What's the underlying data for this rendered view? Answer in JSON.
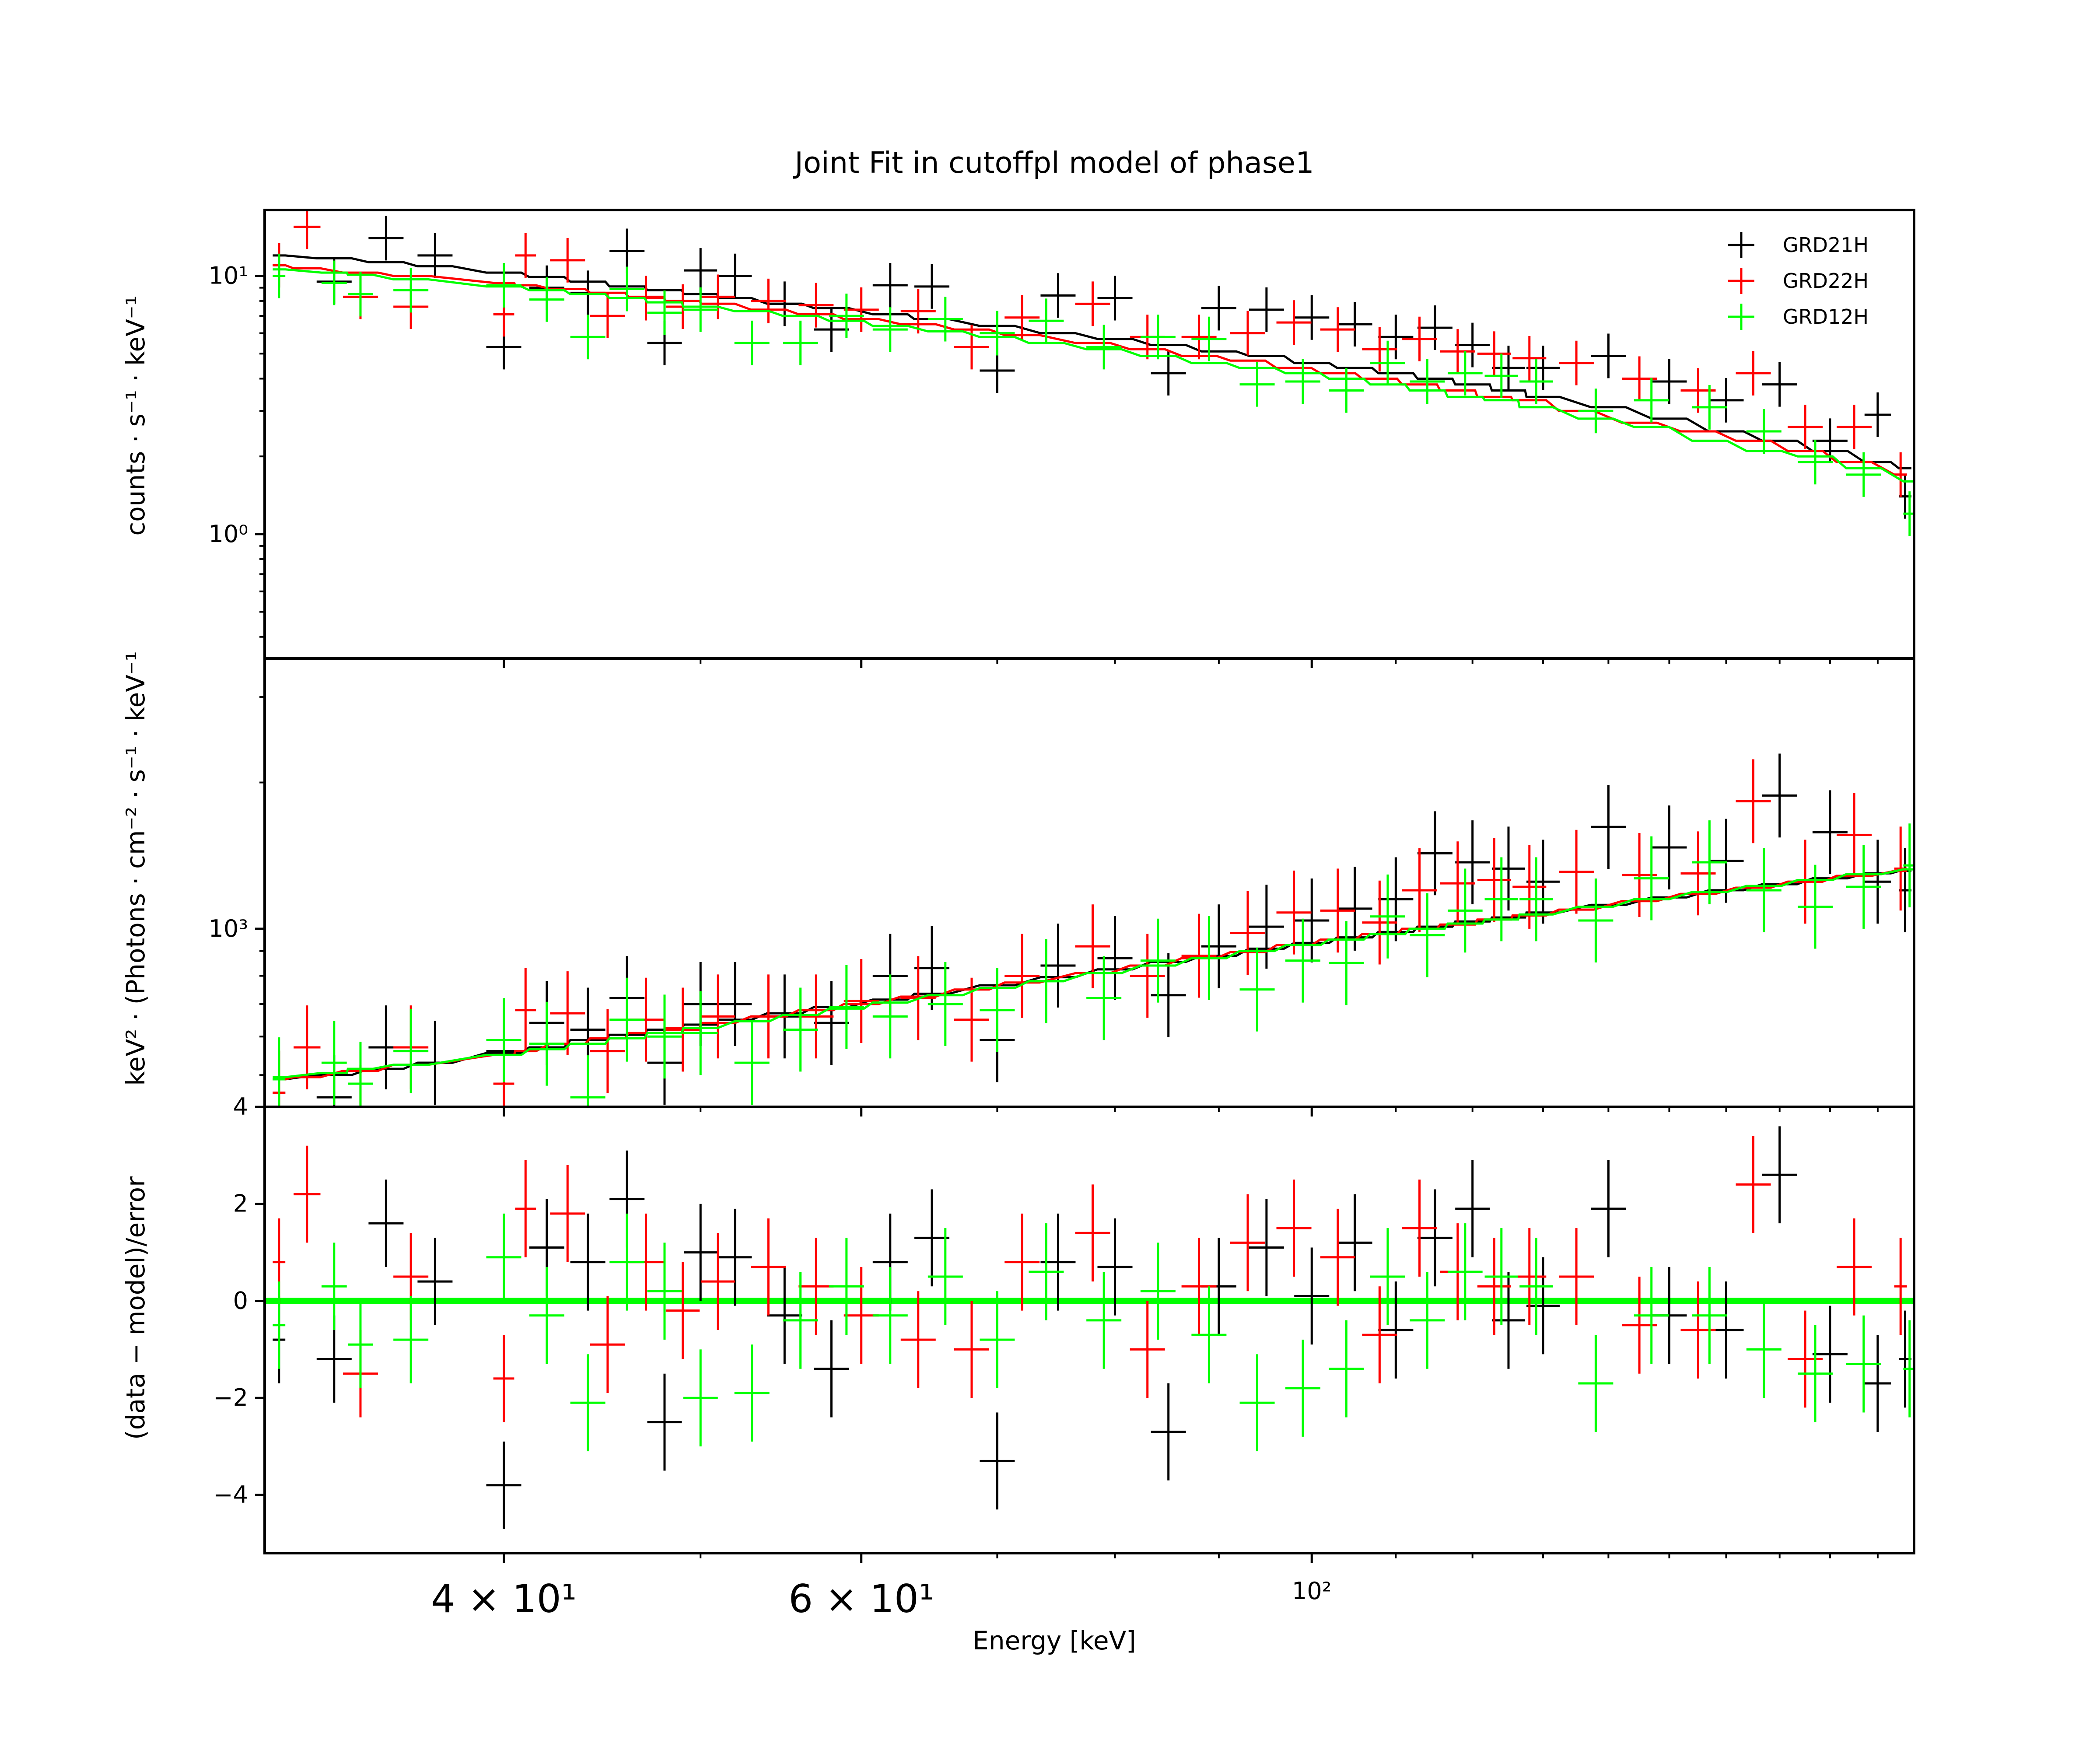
{
  "colors": {
    "GRD21H": "#000000",
    "GRD22H": "#ff0000",
    "GRD12H": "#00ff00"
  },
  "chart_data": [
    {
      "panel": "counts",
      "type": "scatter",
      "title": "Joint Fit  in cutoffpl model of phase1",
      "ylabel": "counts · s⁻¹ · keV⁻¹",
      "xlabel": "",
      "xscale": "log",
      "yscale": "log",
      "xlim": [
        30.5,
        198
      ],
      "ylim": [
        0.33,
        18
      ],
      "yticks": [
        {
          "value": 1,
          "label": "10⁰"
        },
        {
          "value": 10,
          "label": "10¹"
        }
      ],
      "legend": {
        "placement": "top-right",
        "entries": [
          "GRD21H",
          "GRD22H",
          "GRD12H"
        ]
      },
      "grid": false,
      "series": [
        {
          "name": "GRD21H",
          "color": "#000000",
          "x": [
            31,
            33,
            35,
            37,
            40,
            42,
            44,
            46,
            48,
            50,
            52,
            55,
            58,
            62,
            65,
            70,
            75,
            80,
            85,
            90,
            95,
            100,
            105,
            110,
            115,
            120,
            125,
            130,
            140,
            150,
            160,
            170,
            180,
            190,
            196
          ],
          "y": [
            11.0,
            9.5,
            14.0,
            12.0,
            5.3,
            9.0,
            8.6,
            12.5,
            5.5,
            10.5,
            10.0,
            7.8,
            6.2,
            9.2,
            9.1,
            4.3,
            8.4,
            8.2,
            4.2,
            7.5,
            7.4,
            6.9,
            6.5,
            5.8,
            6.3,
            5.4,
            4.4,
            4.4,
            4.9,
            3.9,
            3.3,
            3.8,
            2.3,
            2.9,
            1.4
          ],
          "model": [
            12.0,
            11.7,
            11.3,
            10.9,
            10.3,
            9.9,
            9.5,
            9.1,
            8.8,
            8.5,
            8.2,
            7.8,
            7.5,
            7.1,
            6.8,
            6.4,
            6.0,
            5.7,
            5.4,
            5.1,
            4.9,
            4.6,
            4.4,
            4.2,
            4.0,
            3.8,
            3.6,
            3.4,
            3.1,
            2.8,
            2.5,
            2.3,
            2.1,
            1.9,
            1.8
          ]
        },
        {
          "name": "GRD22H",
          "color": "#ff0000",
          "x": [
            31,
            32,
            34,
            36,
            40,
            41,
            43,
            45,
            47,
            49,
            51,
            54,
            57,
            60,
            64,
            68,
            72,
            78,
            83,
            88,
            93,
            98,
            103,
            108,
            113,
            118,
            123,
            128,
            135,
            145,
            155,
            165,
            175,
            185,
            195
          ],
          "y": [
            11.0,
            15.5,
            8.3,
            7.6,
            7.1,
            12.0,
            11.5,
            7.0,
            8.2,
            7.6,
            8.3,
            8.0,
            7.7,
            7.4,
            7.3,
            5.3,
            6.9,
            7.8,
            5.8,
            5.8,
            6.0,
            6.6,
            6.2,
            5.2,
            5.7,
            5.1,
            5.0,
            4.8,
            4.6,
            4.0,
            3.6,
            4.2,
            2.6,
            2.6,
            1.7
          ],
          "model": [
            11.0,
            10.7,
            10.3,
            10.0,
            9.4,
            9.2,
            8.9,
            8.6,
            8.3,
            8.0,
            7.8,
            7.4,
            7.1,
            6.8,
            6.5,
            6.2,
            5.9,
            5.5,
            5.2,
            4.9,
            4.7,
            4.4,
            4.2,
            4.0,
            3.8,
            3.6,
            3.4,
            3.3,
            3.0,
            2.7,
            2.5,
            2.3,
            2.1,
            1.9,
            1.7
          ]
        },
        {
          "name": "GRD12H",
          "color": "#00ff00",
          "x": [
            31,
            33,
            34,
            36,
            40,
            42,
            44,
            46,
            48,
            50,
            53,
            56,
            59,
            62,
            66,
            70,
            74,
            79,
            84,
            89,
            94,
            99,
            104,
            109,
            114,
            119,
            124,
            129,
            138,
            147,
            157,
            167,
            177,
            187,
            197
          ],
          "y": [
            10.0,
            9.4,
            8.5,
            8.8,
            9.2,
            8.1,
            5.8,
            8.9,
            7.2,
            7.4,
            5.5,
            5.5,
            7.0,
            6.2,
            6.8,
            6.0,
            6.7,
            5.3,
            5.8,
            5.7,
            3.8,
            3.9,
            3.6,
            4.6,
            3.9,
            4.2,
            4.1,
            3.9,
            3.0,
            3.3,
            3.1,
            2.5,
            1.9,
            1.7,
            1.2
          ],
          "model": [
            10.6,
            10.3,
            10.1,
            9.7,
            9.1,
            8.8,
            8.5,
            8.2,
            7.9,
            7.6,
            7.3,
            7.0,
            6.7,
            6.4,
            6.1,
            5.8,
            5.5,
            5.2,
            4.9,
            4.6,
            4.4,
            4.2,
            4.0,
            3.8,
            3.6,
            3.4,
            3.3,
            3.1,
            2.8,
            2.6,
            2.3,
            2.1,
            2.0,
            1.8,
            1.6
          ]
        }
      ]
    },
    {
      "panel": "eeuf",
      "type": "scatter",
      "ylabel": "keV² · (Photons · cm⁻² · s⁻¹ · keV⁻¹",
      "xlabel": "",
      "xscale": "log",
      "yscale": "log",
      "xlim": [
        30.5,
        198
      ],
      "ylim": [
        430,
        3600
      ],
      "yticks": [
        {
          "value": 1000,
          "label": "10³"
        }
      ],
      "grid": false,
      "series": [
        {
          "name": "GRD21H",
          "color": "#000000",
          "x": [
            31,
            33,
            35,
            37,
            40,
            42,
            44,
            46,
            48,
            50,
            52,
            55,
            58,
            62,
            65,
            70,
            75,
            80,
            85,
            90,
            95,
            100,
            105,
            110,
            115,
            120,
            125,
            130,
            140,
            150,
            160,
            170,
            180,
            190,
            196
          ],
          "y": [
            460,
            450,
            570,
            530,
            560,
            640,
            620,
            720,
            530,
            700,
            700,
            660,
            640,
            800,
            830,
            590,
            840,
            870,
            730,
            920,
            1010,
            1040,
            1100,
            1150,
            1430,
            1370,
            1330,
            1250,
            1620,
            1470,
            1380,
            1880,
            1580,
            1250,
            1200
          ],
          "model": [
            490,
            500,
            515,
            530,
            555,
            570,
            590,
            605,
            620,
            635,
            650,
            670,
            690,
            715,
            735,
            765,
            795,
            825,
            855,
            880,
            910,
            935,
            960,
            985,
            1010,
            1035,
            1055,
            1080,
            1120,
            1160,
            1200,
            1235,
            1270,
            1300,
            1315
          ]
        },
        {
          "name": "GRD22H",
          "color": "#ff0000",
          "x": [
            31,
            32,
            34,
            36,
            40,
            41,
            43,
            45,
            47,
            49,
            51,
            54,
            57,
            60,
            64,
            68,
            72,
            78,
            83,
            88,
            93,
            98,
            103,
            108,
            113,
            118,
            123,
            128,
            135,
            145,
            155,
            165,
            175,
            185,
            195
          ],
          "y": [
            460,
            570,
            430,
            570,
            480,
            680,
            670,
            560,
            650,
            620,
            660,
            660,
            660,
            710,
            720,
            650,
            800,
            920,
            800,
            880,
            980,
            1080,
            1090,
            1030,
            1200,
            1240,
            1260,
            1220,
            1310,
            1290,
            1300,
            1830,
            1250,
            1560,
            1330
          ],
          "model": [
            490,
            495,
            510,
            525,
            550,
            560,
            580,
            595,
            610,
            625,
            640,
            660,
            680,
            700,
            725,
            750,
            775,
            810,
            840,
            870,
            895,
            925,
            950,
            975,
            1000,
            1020,
            1045,
            1065,
            1095,
            1140,
            1180,
            1215,
            1250,
            1285,
            1315
          ]
        },
        {
          "name": "GRD12H",
          "color": "#00ff00",
          "x": [
            31,
            33,
            34,
            36,
            40,
            42,
            44,
            46,
            48,
            50,
            53,
            56,
            59,
            62,
            66,
            70,
            74,
            79,
            84,
            89,
            94,
            99,
            104,
            109,
            114,
            119,
            124,
            129,
            138,
            147,
            157,
            167,
            177,
            187,
            197
          ],
          "y": [
            490,
            530,
            480,
            560,
            590,
            580,
            450,
            650,
            600,
            610,
            530,
            620,
            690,
            660,
            700,
            680,
            780,
            720,
            860,
            870,
            750,
            860,
            850,
            1060,
            970,
            1090,
            1150,
            1150,
            1040,
            1270,
            1370,
            1200,
            1110,
            1220,
            1350
          ],
          "model": [
            495,
            505,
            515,
            525,
            550,
            565,
            580,
            595,
            610,
            625,
            645,
            665,
            685,
            705,
            730,
            755,
            780,
            810,
            840,
            870,
            900,
            925,
            950,
            975,
            1000,
            1025,
            1045,
            1070,
            1110,
            1150,
            1190,
            1225,
            1260,
            1295,
            1325
          ]
        }
      ]
    },
    {
      "panel": "residuals",
      "type": "scatter",
      "ylabel": "(data − model)/error",
      "xlabel": "Energy [keV]",
      "xscale": "log",
      "yscale": "linear",
      "xlim": [
        30.5,
        198
      ],
      "ylim": [
        -5.2,
        4
      ],
      "yticks": [
        {
          "value": -4,
          "label": "−4"
        },
        {
          "value": -2,
          "label": "−2"
        },
        {
          "value": 0,
          "label": "0"
        },
        {
          "value": 2,
          "label": "2"
        },
        {
          "value": 4,
          "label": "4"
        }
      ],
      "xticks": [
        {
          "value": 40,
          "label": "4 × 10¹",
          "size": "large"
        },
        {
          "value": 60,
          "label": "6 × 10¹",
          "size": "large"
        },
        {
          "value": 100,
          "label": "10²",
          "size": "small"
        }
      ],
      "grid": false,
      "series": [
        {
          "name": "GRD21H",
          "color": "#000000",
          "x": [
            31,
            33,
            35,
            37,
            40,
            42,
            44,
            46,
            48,
            50,
            52,
            55,
            58,
            62,
            65,
            70,
            75,
            80,
            85,
            90,
            95,
            100,
            105,
            110,
            115,
            120,
            125,
            130,
            140,
            150,
            160,
            170,
            180,
            190,
            196
          ],
          "y": [
            -0.8,
            -1.2,
            1.6,
            0.4,
            -3.8,
            1.1,
            0.8,
            2.1,
            -2.5,
            1.0,
            0.9,
            -0.3,
            -1.4,
            0.8,
            1.3,
            -3.3,
            0.8,
            0.7,
            -2.7,
            0.3,
            1.1,
            0.1,
            1.2,
            -0.6,
            1.3,
            1.9,
            -0.4,
            -0.1,
            1.9,
            -0.3,
            -0.6,
            2.6,
            -1.1,
            -1.7,
            -1.2
          ],
          "err": [
            0.9,
            0.9,
            0.9,
            0.9,
            0.9,
            1.0,
            1.0,
            1.0,
            1.0,
            1.0,
            1.0,
            1.0,
            1.0,
            1.0,
            1.0,
            1.0,
            1.0,
            1.0,
            1.0,
            1.0,
            1.0,
            1.0,
            1.0,
            1.0,
            1.0,
            1.0,
            1.0,
            1.0,
            1.0,
            1.0,
            1.0,
            1.0,
            1.0,
            1.0,
            1.0
          ]
        },
        {
          "name": "GRD22H",
          "color": "#ff0000",
          "x": [
            31,
            32,
            34,
            36,
            40,
            41,
            43,
            45,
            47,
            49,
            51,
            54,
            57,
            60,
            64,
            68,
            72,
            78,
            83,
            88,
            93,
            98,
            103,
            108,
            113,
            118,
            123,
            128,
            135,
            145,
            155,
            165,
            175,
            185,
            195
          ],
          "y": [
            0.8,
            2.2,
            -1.5,
            0.5,
            -1.6,
            1.9,
            1.8,
            -0.9,
            0.8,
            -0.2,
            0.4,
            0.7,
            0.3,
            -0.3,
            -0.8,
            -1.0,
            0.8,
            1.4,
            -1.0,
            0.3,
            1.2,
            1.5,
            0.9,
            -0.7,
            1.5,
            0.6,
            0.3,
            0.5,
            0.5,
            -0.5,
            -0.6,
            2.4,
            -1.2,
            0.7,
            0.3
          ],
          "err": [
            0.9,
            1.0,
            0.9,
            0.9,
            0.9,
            1.0,
            1.0,
            1.0,
            1.0,
            1.0,
            1.0,
            1.0,
            1.0,
            1.0,
            1.0,
            1.0,
            1.0,
            1.0,
            1.0,
            1.0,
            1.0,
            1.0,
            1.0,
            1.0,
            1.0,
            1.0,
            1.0,
            1.0,
            1.0,
            1.0,
            1.0,
            1.0,
            1.0,
            1.0,
            1.0
          ]
        },
        {
          "name": "GRD12H",
          "color": "#00ff00",
          "x": [
            31,
            33,
            34,
            36,
            40,
            42,
            44,
            46,
            48,
            50,
            53,
            56,
            59,
            62,
            66,
            70,
            74,
            79,
            84,
            89,
            94,
            99,
            104,
            109,
            114,
            119,
            124,
            129,
            138,
            147,
            157,
            167,
            177,
            187,
            197
          ],
          "y": [
            -0.5,
            0.3,
            -0.9,
            -0.8,
            0.9,
            -0.3,
            -2.1,
            0.8,
            0.2,
            -2.0,
            -1.9,
            -0.4,
            0.3,
            -0.3,
            0.5,
            -0.8,
            0.6,
            -0.4,
            0.2,
            -0.7,
            -2.1,
            -1.8,
            -1.4,
            0.5,
            -0.4,
            0.6,
            0.5,
            0.3,
            -1.7,
            -0.3,
            -0.3,
            -1.0,
            -1.5,
            -1.3,
            -1.4
          ],
          "err": [
            0.9,
            0.9,
            0.9,
            0.9,
            0.9,
            1.0,
            1.0,
            1.0,
            1.0,
            1.0,
            1.0,
            1.0,
            1.0,
            1.0,
            1.0,
            1.0,
            1.0,
            1.0,
            1.0,
            1.0,
            1.0,
            1.0,
            1.0,
            1.0,
            1.0,
            1.0,
            1.0,
            1.0,
            1.0,
            1.0,
            1.0,
            1.0,
            1.0,
            1.0,
            1.0
          ]
        }
      ]
    }
  ]
}
